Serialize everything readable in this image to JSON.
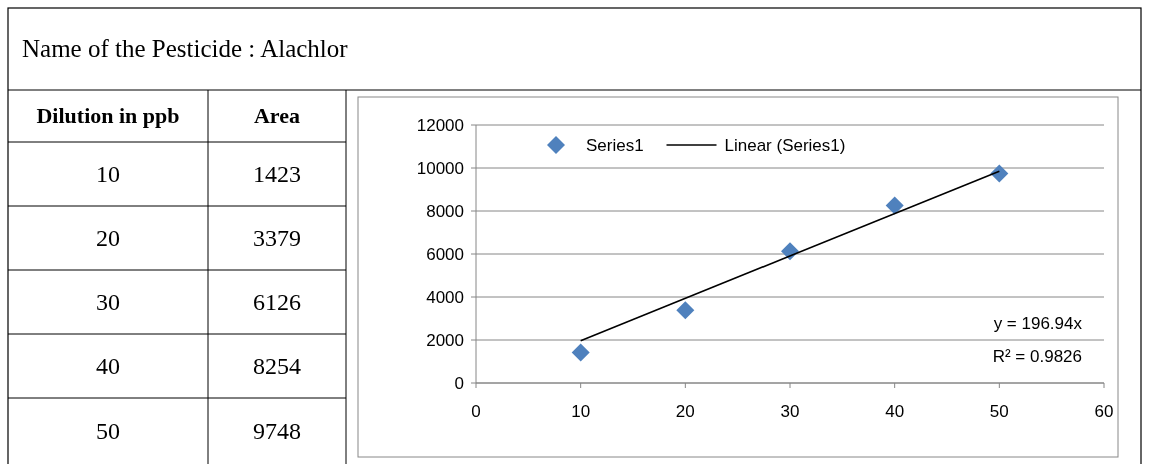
{
  "chart_data": {
    "type": "scatter",
    "title": "Name of the Pesticide  :  Alachlor",
    "series": [
      {
        "name": "Series1",
        "color": "#4f81bd",
        "marker": "diamond",
        "x": [
          10,
          20,
          30,
          40,
          50
        ],
        "values": [
          1423,
          3379,
          6126,
          8254,
          9748
        ]
      },
      {
        "name": "Linear (Series1)",
        "type": "line",
        "color": "#000000",
        "marker": "none",
        "line_style": "solid",
        "x": [
          10,
          50
        ],
        "values": [
          1970,
          9850
        ]
      }
    ],
    "annotations": [
      "Dilution in ppb",
      "Area",
      "10",
      "1423",
      "20",
      "3379",
      "30",
      "6126",
      "40",
      "8254",
      "50",
      "9748",
      "y = 196.94x",
      "R² = 0.9826"
    ],
    "xlim": [
      0,
      60
    ],
    "xticks": [
      0,
      10,
      20,
      30,
      40,
      50,
      60
    ],
    "ylim": [
      0,
      12000
    ],
    "yticks": [
      0,
      2000,
      4000,
      6000,
      8000,
      10000,
      12000
    ],
    "grid": "y",
    "legend": "top"
  }
}
